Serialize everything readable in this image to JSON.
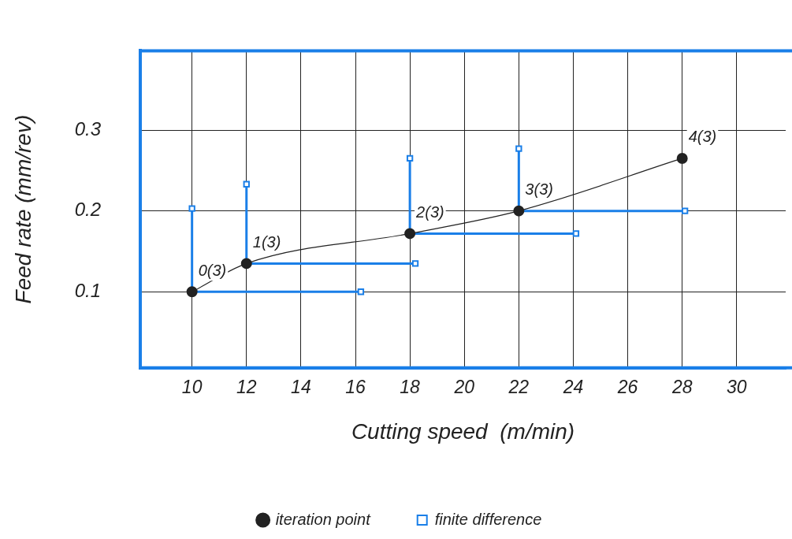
{
  "chart_data": {
    "type": "line",
    "xlabel": "Cutting speed  (m/min)",
    "ylabel": "Feed rate (mm/rev)",
    "xlim": [
      8.1,
      31.8
    ],
    "xticks": [
      10,
      12,
      14,
      16,
      18,
      20,
      22,
      24,
      26,
      28,
      30
    ],
    "ylim": [
      0.006,
      0.398
    ],
    "yticks": [
      0.1,
      0.2,
      0.3
    ],
    "grid": true,
    "legend": "bottom",
    "series": [
      {
        "name": "iteration point",
        "color": "#222222",
        "type": "line",
        "marker": "circle",
        "x": [
          10,
          12,
          18,
          22,
          28
        ],
        "values": [
          0.1,
          0.135,
          0.172,
          0.2,
          0.265
        ]
      },
      {
        "name": "finite difference",
        "color": "#1a7fe8",
        "type": "line",
        "marker": "square",
        "x": [
          10,
          10,
          16.2,
          null,
          12,
          12,
          18.2,
          null,
          18,
          18,
          24.1,
          null,
          22,
          22,
          28.1
        ],
        "values": [
          0.203,
          0.1,
          0.1,
          null,
          0.233,
          0.135,
          0.135,
          null,
          0.265,
          0.172,
          0.172,
          null,
          0.277,
          0.2,
          0.2
        ]
      }
    ],
    "annotations": [
      {
        "text": "0(3)",
        "x": 10,
        "y": 0.1
      },
      {
        "text": "1(3)",
        "x": 12,
        "y": 0.135
      },
      {
        "text": "2(3)",
        "x": 18,
        "y": 0.172
      },
      {
        "text": "3(3)",
        "x": 22,
        "y": 0.2
      },
      {
        "text": "4(3)",
        "x": 28,
        "y": 0.265
      }
    ]
  }
}
